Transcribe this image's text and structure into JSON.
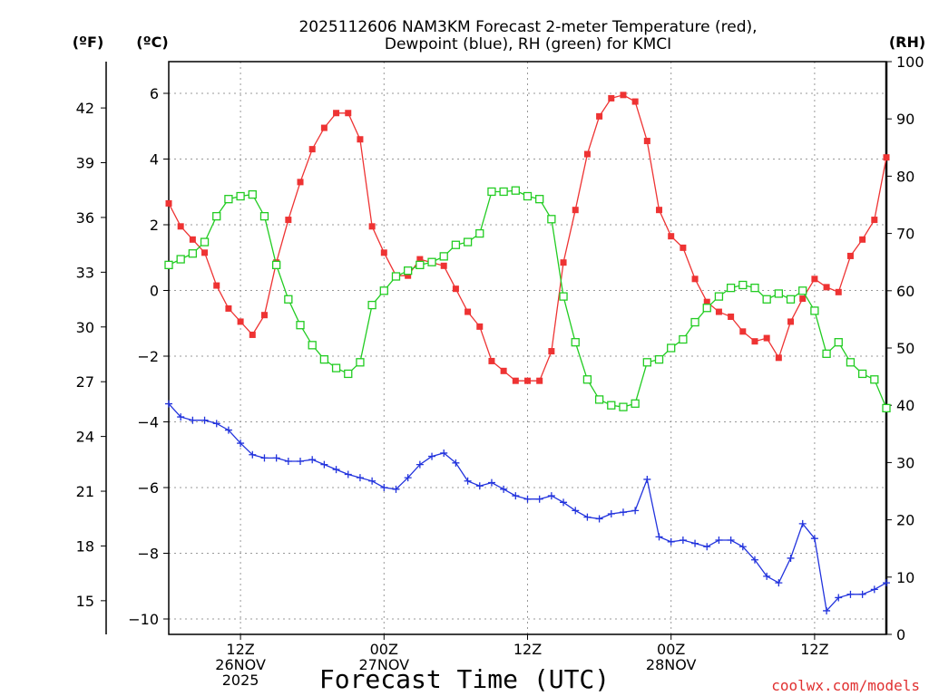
{
  "header": {
    "title_line1": "2025112606 NAM3KM Forecast 2-meter Temperature (red),",
    "title_line2": "Dewpoint (blue), RH (green) for KMCI",
    "unit_f": "(ºF)",
    "unit_c": "(ºC)",
    "unit_rh": "(RH)"
  },
  "footer": {
    "xlabel": "Forecast Time (UTC)",
    "credit": "coolwx.com/models"
  },
  "chart_data": {
    "type": "line",
    "title": "2025112606 NAM3KM Forecast 2-meter Temperature (red), Dewpoint (blue), RH (green) for KMCI",
    "xlabel": "Forecast Time (UTC)",
    "ylabel_left_outer": "ºF",
    "ylabel_left": "ºC",
    "ylabel_right": "RH",
    "xlim": [
      6,
      66
    ],
    "ylim_c": [
      -10.5,
      7
    ],
    "ylim_rh": [
      0,
      100
    ],
    "yticks_c": [
      -10,
      -8,
      -6,
      -4,
      -2,
      0,
      2,
      4,
      6
    ],
    "yticks_c_labels": [
      "−10",
      "−8",
      "−6",
      "−4",
      "−2",
      "0",
      "2",
      "4",
      "6"
    ],
    "yticks_f": [
      15,
      18,
      21,
      24,
      27,
      30,
      33,
      36,
      39,
      42
    ],
    "yticks_rh": [
      0,
      10,
      20,
      30,
      40,
      50,
      60,
      70,
      80,
      90,
      100
    ],
    "xticks": [
      {
        "hour": 12,
        "lines": [
          "12Z",
          "26NOV",
          "2025"
        ]
      },
      {
        "hour": 24,
        "lines": [
          "00Z",
          "27NOV"
        ]
      },
      {
        "hour": 36,
        "lines": [
          "12Z"
        ]
      },
      {
        "hour": 48,
        "lines": [
          "00Z",
          "28NOV"
        ]
      },
      {
        "hour": 60,
        "lines": [
          "12Z"
        ]
      }
    ],
    "grid": true,
    "series": [
      {
        "name": "Temperature",
        "unit": "C",
        "color": "#ee3333",
        "marker": "filled-square",
        "x": [
          6,
          7,
          8,
          9,
          10,
          11,
          12,
          13,
          14,
          15,
          16,
          17,
          18,
          19,
          20,
          21,
          22,
          23,
          24,
          25,
          26,
          27,
          28,
          29,
          30,
          31,
          32,
          33,
          34,
          35,
          36,
          37,
          38,
          39,
          40,
          41,
          42,
          43,
          44,
          45,
          46,
          47,
          48,
          49,
          50,
          51,
          52,
          53,
          54,
          55,
          56,
          57,
          58,
          59,
          60,
          61,
          62,
          63,
          64,
          65,
          66
        ],
        "values": [
          2.65,
          1.95,
          1.55,
          1.15,
          0.15,
          -0.55,
          -0.95,
          -1.35,
          -0.75,
          0.85,
          2.15,
          3.3,
          4.3,
          4.95,
          5.4,
          5.4,
          4.6,
          1.95,
          1.15,
          0.45,
          0.45,
          0.95,
          0.85,
          0.75,
          0.05,
          -0.65,
          -1.1,
          -2.15,
          -2.45,
          -2.75,
          -2.75,
          -2.75,
          -1.85,
          0.85,
          2.45,
          4.15,
          5.3,
          5.85,
          5.95,
          5.75,
          4.55,
          2.45,
          1.65,
          1.3,
          0.35,
          -0.35,
          -0.65,
          -0.8,
          -1.25,
          -1.55,
          -1.45,
          -2.05,
          -0.95,
          -0.25,
          0.35,
          0.1,
          -0.05,
          1.05,
          1.55,
          2.15,
          4.05
        ]
      },
      {
        "name": "Dewpoint",
        "unit": "C",
        "color": "#2233dd",
        "marker": "plus",
        "x": [
          6,
          7,
          8,
          9,
          10,
          11,
          12,
          13,
          14,
          15,
          16,
          17,
          18,
          19,
          20,
          21,
          22,
          23,
          24,
          25,
          26,
          27,
          28,
          29,
          30,
          31,
          32,
          33,
          34,
          35,
          36,
          37,
          38,
          39,
          40,
          41,
          42,
          43,
          44,
          45,
          46,
          47,
          48,
          49,
          50,
          51,
          52,
          53,
          54,
          55,
          56,
          57,
          58,
          59,
          60,
          61,
          62,
          63,
          64,
          65,
          66
        ],
        "values": [
          -3.45,
          -3.85,
          -3.95,
          -3.95,
          -4.05,
          -4.25,
          -4.65,
          -5.0,
          -5.1,
          -5.1,
          -5.2,
          -5.2,
          -5.15,
          -5.3,
          -5.45,
          -5.6,
          -5.7,
          -5.8,
          -6.0,
          -6.05,
          -5.7,
          -5.3,
          -5.05,
          -4.95,
          -5.25,
          -5.8,
          -5.95,
          -5.85,
          -6.05,
          -6.25,
          -6.35,
          -6.35,
          -6.25,
          -6.45,
          -6.7,
          -6.9,
          -6.95,
          -6.8,
          -6.75,
          -6.7,
          -5.75,
          -7.5,
          -7.65,
          -7.6,
          -7.7,
          -7.8,
          -7.6,
          -7.6,
          -7.8,
          -8.2,
          -8.7,
          -8.9,
          -8.15,
          -7.1,
          -7.55,
          -9.75,
          -9.35,
          -9.25,
          -9.25,
          -9.1,
          -8.9
        ]
      },
      {
        "name": "RH",
        "unit": "%",
        "color": "#22cc22",
        "marker": "open-square",
        "x": [
          6,
          7,
          8,
          9,
          10,
          11,
          12,
          13,
          14,
          15,
          16,
          17,
          18,
          19,
          20,
          21,
          22,
          23,
          24,
          25,
          26,
          27,
          28,
          29,
          30,
          31,
          32,
          33,
          34,
          35,
          36,
          37,
          38,
          39,
          40,
          41,
          42,
          43,
          44,
          45,
          46,
          47,
          48,
          49,
          50,
          51,
          52,
          53,
          54,
          55,
          56,
          57,
          58,
          59,
          60,
          61,
          62,
          63,
          64,
          65,
          66
        ],
        "values": [
          64.5,
          65.5,
          66.5,
          68.5,
          73,
          76,
          76.5,
          76.8,
          73,
          64.5,
          58.5,
          54,
          50.5,
          48,
          46.5,
          45.5,
          47.5,
          57.5,
          60,
          62.5,
          63.5,
          64.5,
          65,
          66,
          68,
          68.5,
          70,
          77.3,
          77.3,
          77.5,
          76.5,
          76,
          72.5,
          59,
          51,
          44.5,
          41,
          40,
          39.7,
          40.3,
          47.5,
          48,
          50,
          51.5,
          54.5,
          57,
          59,
          60.5,
          61,
          60.5,
          58.5,
          59.5,
          58.5,
          60,
          56.5,
          49,
          51,
          47.5,
          45.5,
          44.5,
          39.5
        ]
      }
    ]
  }
}
